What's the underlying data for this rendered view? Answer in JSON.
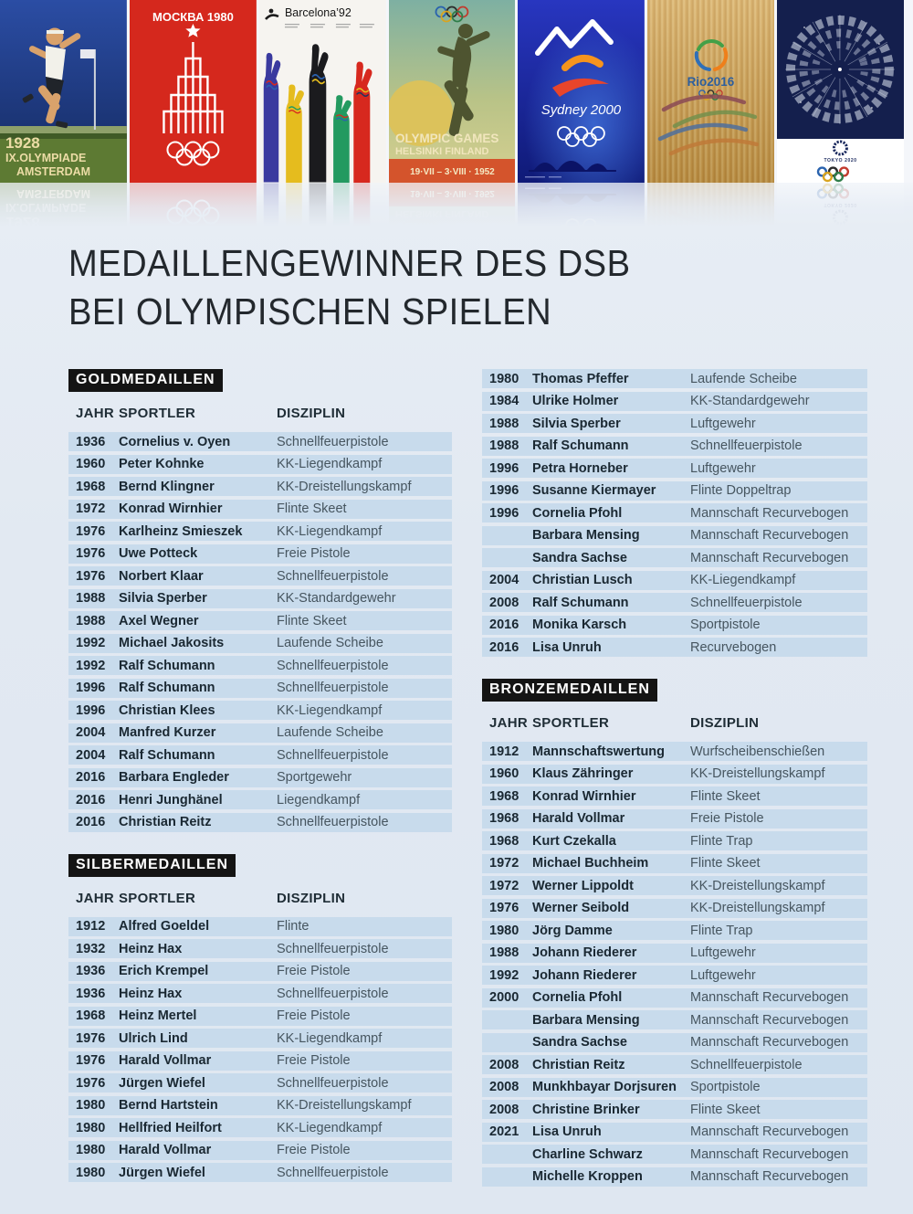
{
  "page": {
    "title_line1": "MEDAILLENGEWINNER DES DSB",
    "title_line2": "BEI OLYMPISCHEN SPIELEN"
  },
  "colors": {
    "page_background": "#e4ebf3",
    "row_band": "#c8dbec",
    "badge_background": "#141414",
    "badge_text": "#ffffff",
    "heading_text": "#222a30",
    "name_text": "#1a2832",
    "discipline_text": "#46555f"
  },
  "posters": [
    {
      "name": "amsterdam-1928",
      "lines": [
        "1928",
        "IX.OLYMPIADE",
        "AMSTERDAM"
      ]
    },
    {
      "name": "moscow-1980",
      "title": "МОСКВА 1980"
    },
    {
      "name": "barcelona-1992",
      "title": "Barcelona’92"
    },
    {
      "name": "helsinki-1952",
      "line1": "OLYMPIC GAMES",
      "line2": "HELSINKI FINLAND",
      "line3": "19·VII – 3·VIII · 1952"
    },
    {
      "name": "sydney-2000",
      "title": "Sydney 2000"
    },
    {
      "name": "rio-2016",
      "title": "Rio2016"
    },
    {
      "name": "tokyo-2020",
      "title": "TOKYO 2020"
    }
  ],
  "tables": {
    "headers": {
      "jahr": "JAHR",
      "sportler": "SPORTLER",
      "disziplin": "DISZIPLIN"
    },
    "gold": {
      "badge": "GOLDMEDAILLEN",
      "rows": [
        [
          "1936",
          "Cornelius v. Oyen",
          "Schnellfeuerpistole"
        ],
        [
          "1960",
          "Peter Kohnke",
          "KK-Liegendkampf"
        ],
        [
          "1968",
          "Bernd Klingner",
          "KK-Dreistellungskampf"
        ],
        [
          "1972",
          "Konrad Wirnhier",
          "Flinte Skeet"
        ],
        [
          "1976",
          "Karlheinz Smieszek",
          "KK-Liegendkampf"
        ],
        [
          "1976",
          "Uwe Potteck",
          "Freie Pistole"
        ],
        [
          "1976",
          "Norbert Klaar",
          "Schnellfeuerpistole"
        ],
        [
          "1988",
          "Silvia Sperber",
          "KK-Standardgewehr"
        ],
        [
          "1988",
          "Axel Wegner",
          "Flinte Skeet"
        ],
        [
          "1992",
          "Michael Jakosits",
          "Laufende Scheibe"
        ],
        [
          "1992",
          "Ralf Schumann",
          "Schnellfeuerpistole"
        ],
        [
          "1996",
          "Ralf Schumann",
          "Schnellfeuerpistole"
        ],
        [
          "1996",
          "Christian Klees",
          "KK-Liegendkampf"
        ],
        [
          "2004",
          "Manfred Kurzer",
          "Laufende Scheibe"
        ],
        [
          "2004",
          "Ralf Schumann",
          "Schnellfeuerpistole"
        ],
        [
          "2016",
          "Barbara Engleder",
          "Sportgewehr"
        ],
        [
          "2016",
          "Henri Junghänel",
          "Liegendkampf"
        ],
        [
          "2016",
          "Christian Reitz",
          "Schnellfeuerpistole"
        ]
      ]
    },
    "silver": {
      "badge": "SILBERMEDAILLEN",
      "rows_left": [
        [
          "1912",
          "Alfred Goeldel",
          "Flinte"
        ],
        [
          "1932",
          "Heinz Hax",
          "Schnellfeuerpistole"
        ],
        [
          "1936",
          "Erich Krempel",
          "Freie Pistole"
        ],
        [
          "1936",
          "Heinz Hax",
          "Schnellfeuerpistole"
        ],
        [
          "1968",
          "Heinz Mertel",
          "Freie Pistole"
        ],
        [
          "1976",
          "Ulrich Lind",
          "KK-Liegendkampf"
        ],
        [
          "1976",
          "Harald Vollmar",
          "Freie Pistole"
        ],
        [
          "1976",
          "Jürgen Wiefel",
          "Schnellfeuerpistole"
        ],
        [
          "1980",
          "Bernd Hartstein",
          "KK-Dreistellungskampf"
        ],
        [
          "1980",
          "Hellfried Heilfort",
          "KK-Liegendkampf"
        ],
        [
          "1980",
          "Harald Vollmar",
          "Freie Pistole"
        ],
        [
          "1980",
          "Jürgen Wiefel",
          "Schnellfeuerpistole"
        ]
      ],
      "rows_right": [
        [
          "1980",
          "Thomas Pfeffer",
          "Laufende Scheibe"
        ],
        [
          "1984",
          "Ulrike Holmer",
          "KK-Standardgewehr"
        ],
        [
          "1988",
          "Silvia Sperber",
          "Luftgewehr"
        ],
        [
          "1988",
          "Ralf Schumann",
          "Schnellfeuerpistole"
        ],
        [
          "1996",
          "Petra Horneber",
          "Luftgewehr"
        ],
        [
          "1996",
          "Susanne Kiermayer",
          "Flinte Doppeltrap"
        ],
        [
          "1996",
          "Cornelia Pfohl",
          "Mannschaft Recurvebogen"
        ],
        [
          "",
          "Barbara Mensing",
          "Mannschaft Recurvebogen"
        ],
        [
          "",
          "Sandra Sachse",
          "Mannschaft Recurvebogen"
        ],
        [
          "2004",
          "Christian Lusch",
          "KK-Liegendkampf"
        ],
        [
          "2008",
          "Ralf Schumann",
          "Schnellfeuerpistole"
        ],
        [
          "2016",
          "Monika Karsch",
          "Sportpistole"
        ],
        [
          "2016",
          "Lisa Unruh",
          "Recurvebogen"
        ]
      ]
    },
    "bronze": {
      "badge": "BRONZEMEDAILLEN",
      "rows": [
        [
          "1912",
          "Mannschaftswertung",
          "Wurfscheibenschießen"
        ],
        [
          "1960",
          "Klaus Zähringer",
          "KK-Dreistellungskampf"
        ],
        [
          "1968",
          "Konrad Wirnhier",
          "Flinte Skeet"
        ],
        [
          "1968",
          "Harald Vollmar",
          "Freie Pistole"
        ],
        [
          "1968",
          "Kurt Czekalla",
          "Flinte Trap"
        ],
        [
          "1972",
          "Michael Buchheim",
          "Flinte Skeet"
        ],
        [
          "1972",
          "Werner Lippoldt",
          "KK-Dreistellungskampf"
        ],
        [
          "1976",
          "Werner Seibold",
          "KK-Dreistellungskampf"
        ],
        [
          "1980",
          "Jörg Damme",
          "Flinte Trap"
        ],
        [
          "1988",
          "Johann Riederer",
          "Luftgewehr"
        ],
        [
          "1992",
          "Johann Riederer",
          "Luftgewehr"
        ],
        [
          "2000",
          "Cornelia Pfohl",
          "Mannschaft Recurvebogen"
        ],
        [
          "",
          "Barbara Mensing",
          "Mannschaft Recurvebogen"
        ],
        [
          "",
          "Sandra Sachse",
          "Mannschaft Recurvebogen"
        ],
        [
          "2008",
          "Christian Reitz",
          "Schnellfeuerpistole"
        ],
        [
          "2008",
          "Munkhbayar Dorjsuren",
          "Sportpistole"
        ],
        [
          "2008",
          "Christine Brinker",
          "Flinte Skeet"
        ],
        [
          "2021",
          "Lisa Unruh",
          "Mannschaft Recurvebogen"
        ],
        [
          "",
          "Charline Schwarz",
          "Mannschaft Recurvebogen"
        ],
        [
          "",
          "Michelle Kroppen",
          "Mannschaft Recurvebogen"
        ]
      ]
    }
  }
}
